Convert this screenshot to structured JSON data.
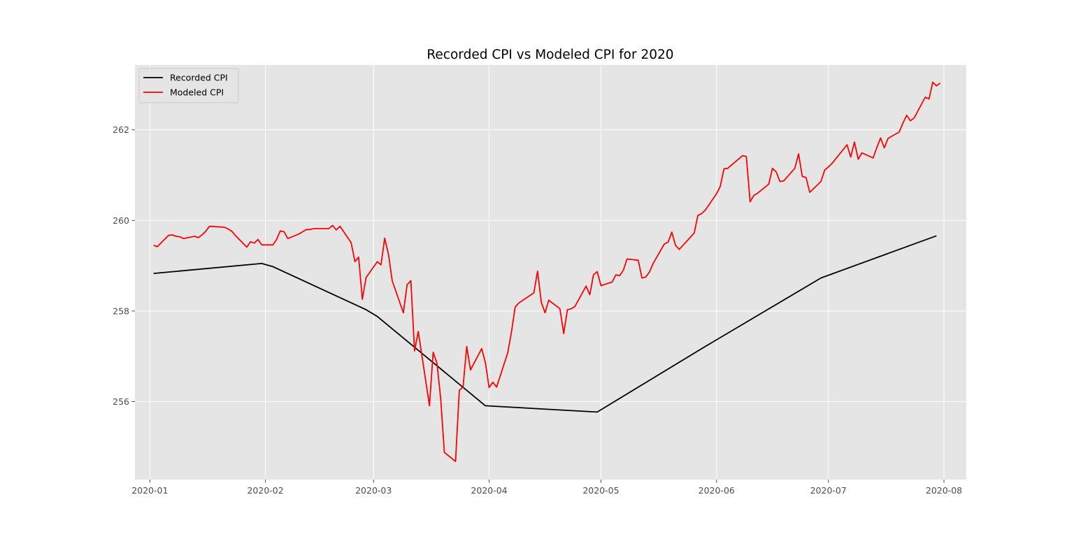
{
  "chart_data": {
    "type": "line",
    "title": "Recorded CPI vs Modeled CPI for 2020",
    "xlabel": "",
    "ylabel": "",
    "xlim": [
      "2019-12-28",
      "2020-08-07"
    ],
    "ylim": [
      254.28,
      263.43
    ],
    "grid": true,
    "legend_position": "top-left",
    "x_ticks": [
      "2020-01",
      "2020-02",
      "2020-03",
      "2020-04",
      "2020-05",
      "2020-06",
      "2020-07",
      "2020-08"
    ],
    "y_ticks": [
      256,
      258,
      260,
      262
    ],
    "colors": {
      "background": "#e5e5e5",
      "grid": "#ffffff",
      "recorded": "#000000",
      "modeled": "#ff0000"
    },
    "series": [
      {
        "name": "Recorded CPI",
        "x": [
          "2020-01-02",
          "2020-01-31",
          "2020-02-03",
          "2020-02-28",
          "2020-03-02",
          "2020-03-31",
          "2020-04-30",
          "2020-05-29",
          "2020-06-29",
          "2020-07-30"
        ],
        "y": [
          258.83,
          259.05,
          258.98,
          258.03,
          257.88,
          255.91,
          255.77,
          257.22,
          258.73,
          259.66
        ]
      },
      {
        "name": "Modeled CPI",
        "x": [
          "2020-01-02",
          "2020-01-03",
          "2020-01-06",
          "2020-01-07",
          "2020-01-08",
          "2020-01-09",
          "2020-01-10",
          "2020-01-13",
          "2020-01-14",
          "2020-01-15",
          "2020-01-16",
          "2020-01-17",
          "2020-01-21",
          "2020-01-22",
          "2020-01-23",
          "2020-01-24",
          "2020-01-27",
          "2020-01-28",
          "2020-01-29",
          "2020-01-30",
          "2020-01-31",
          "2020-02-03",
          "2020-02-04",
          "2020-02-05",
          "2020-02-06",
          "2020-02-07",
          "2020-02-10",
          "2020-02-11",
          "2020-02-12",
          "2020-02-13",
          "2020-02-14",
          "2020-02-18",
          "2020-02-19",
          "2020-02-20",
          "2020-02-21",
          "2020-02-24",
          "2020-02-25",
          "2020-02-26",
          "2020-02-27",
          "2020-02-28",
          "2020-03-02",
          "2020-03-03",
          "2020-03-04",
          "2020-03-05",
          "2020-03-06",
          "2020-03-09",
          "2020-03-10",
          "2020-03-11",
          "2020-03-12",
          "2020-03-13",
          "2020-03-16",
          "2020-03-17",
          "2020-03-18",
          "2020-03-19",
          "2020-03-20",
          "2020-03-23",
          "2020-03-24",
          "2020-03-25",
          "2020-03-26",
          "2020-03-27",
          "2020-03-30",
          "2020-03-31",
          "2020-04-01",
          "2020-04-02",
          "2020-04-03",
          "2020-04-06",
          "2020-04-07",
          "2020-04-08",
          "2020-04-09",
          "2020-04-13",
          "2020-04-14",
          "2020-04-15",
          "2020-04-16",
          "2020-04-17",
          "2020-04-20",
          "2020-04-21",
          "2020-04-22",
          "2020-04-23",
          "2020-04-24",
          "2020-04-27",
          "2020-04-28",
          "2020-04-29",
          "2020-04-30",
          "2020-05-01",
          "2020-05-04",
          "2020-05-05",
          "2020-05-06",
          "2020-05-07",
          "2020-05-08",
          "2020-05-11",
          "2020-05-12",
          "2020-05-13",
          "2020-05-14",
          "2020-05-15",
          "2020-05-18",
          "2020-05-19",
          "2020-05-20",
          "2020-05-21",
          "2020-05-22",
          "2020-05-26",
          "2020-05-27",
          "2020-05-28",
          "2020-05-29",
          "2020-06-01",
          "2020-06-02",
          "2020-06-03",
          "2020-06-04",
          "2020-06-05",
          "2020-06-08",
          "2020-06-09",
          "2020-06-10",
          "2020-06-11",
          "2020-06-12",
          "2020-06-15",
          "2020-06-16",
          "2020-06-17",
          "2020-06-18",
          "2020-06-19",
          "2020-06-22",
          "2020-06-23",
          "2020-06-24",
          "2020-06-25",
          "2020-06-26",
          "2020-06-29",
          "2020-06-30",
          "2020-07-01",
          "2020-07-02",
          "2020-07-06",
          "2020-07-07",
          "2020-07-08",
          "2020-07-09",
          "2020-07-10",
          "2020-07-13",
          "2020-07-14",
          "2020-07-15",
          "2020-07-16",
          "2020-07-17",
          "2020-07-20",
          "2020-07-21",
          "2020-07-22",
          "2020-07-23",
          "2020-07-24",
          "2020-07-27",
          "2020-07-28",
          "2020-07-29",
          "2020-07-30",
          "2020-07-31"
        ],
        "y": [
          259.45,
          259.42,
          259.67,
          259.68,
          259.65,
          259.64,
          259.6,
          259.65,
          259.62,
          259.68,
          259.76,
          259.87,
          259.85,
          259.81,
          259.76,
          259.66,
          259.41,
          259.53,
          259.5,
          259.58,
          259.46,
          259.46,
          259.58,
          259.77,
          259.75,
          259.6,
          259.7,
          259.75,
          259.8,
          259.8,
          259.82,
          259.82,
          259.89,
          259.79,
          259.87,
          259.51,
          259.09,
          259.19,
          258.26,
          258.74,
          259.09,
          259.02,
          259.61,
          259.25,
          258.67,
          257.96,
          258.58,
          258.67,
          257.12,
          257.55,
          255.91,
          257.09,
          256.85,
          256.08,
          254.88,
          254.68,
          256.25,
          256.32,
          257.22,
          256.7,
          257.17,
          256.86,
          256.31,
          256.43,
          256.32,
          257.08,
          257.54,
          258.09,
          258.18,
          258.4,
          258.88,
          258.19,
          257.96,
          258.24,
          258.05,
          257.5,
          258.03,
          258.05,
          258.1,
          258.55,
          258.36,
          258.8,
          258.87,
          258.56,
          258.64,
          258.8,
          258.78,
          258.9,
          259.15,
          259.12,
          258.73,
          258.75,
          258.86,
          259.05,
          259.48,
          259.52,
          259.74,
          259.45,
          259.36,
          259.72,
          260.11,
          260.15,
          260.23,
          260.59,
          260.75,
          261.14,
          261.15,
          261.22,
          261.43,
          261.41,
          260.41,
          260.55,
          260.6,
          260.8,
          261.15,
          261.07,
          260.86,
          260.87,
          261.15,
          261.47,
          260.97,
          260.95,
          260.62,
          260.86,
          261.11,
          261.18,
          261.26,
          261.67,
          261.4,
          261.73,
          261.35,
          261.49,
          261.38,
          261.61,
          261.82,
          261.6,
          261.81,
          261.95,
          262.15,
          262.32,
          262.2,
          262.26,
          262.72,
          262.68,
          263.05,
          262.97,
          263.03
        ]
      }
    ]
  }
}
